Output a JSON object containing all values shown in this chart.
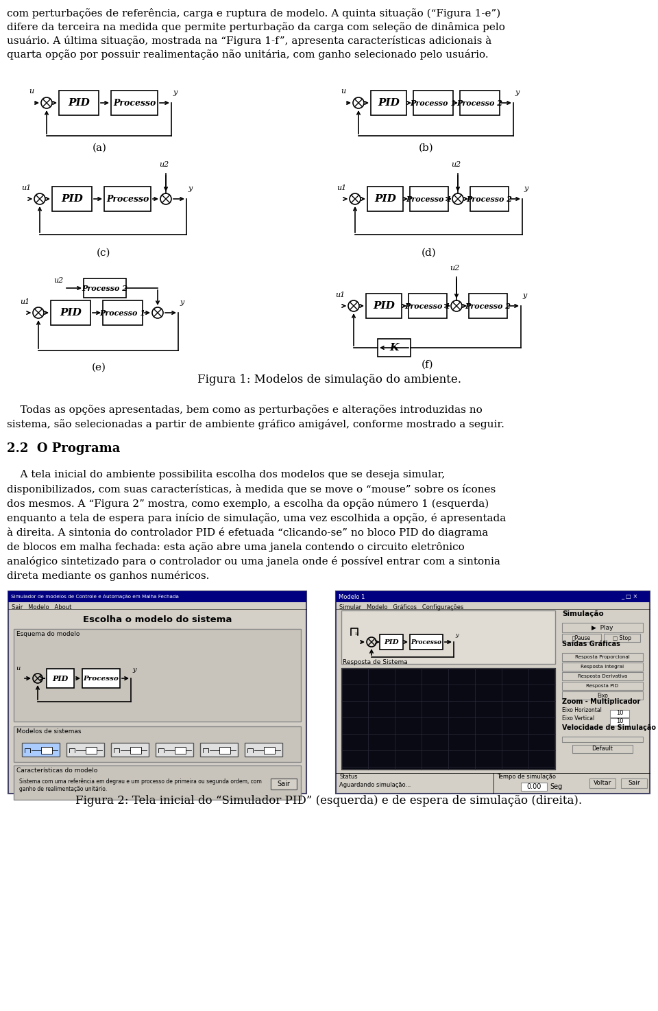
{
  "background_color": "#ffffff",
  "top_text": [
    "com perturbacoes de referencia, carga e ruptura de modelo. A quinta situacao (\"Figura 1-e\")",
    "difere da terceira na medida que permite perturbacao da carga com selecao de dinamica pelo",
    "usuario. A ultima situacao, mostrada na \"Figura 1-f\", apresenta caracteristicas adicionais a",
    "quarta opcao por possuir realimentacao nao unitaria, com ganho selecionado pelo usuario."
  ],
  "middle_text1": [
    "    Todas as opcoes apresentadas, bem como as perturbacoes e alteracoes introduzidas no",
    "sistema, sao selecionadas a partir de ambiente grafico amigavel, conforme mostrado a seguir."
  ],
  "section_header": "2.2  O Programa",
  "middle_text2": [
    "    A tela inicial do ambiente possibilita escolha dos modelos que se deseja simular,",
    "disponibilizados, com suas caracteristicas, a medida que se move o \"mouse\" sobre os icones",
    "dos mesmos. A \"Figura 2\" mostra, como exemplo, a escolha da opcao numero 1 (esquerda)",
    "enquanto a tela de espera para inicio de simulacao, uma vez escolhida a opcao, e apresentada",
    "a direita. A sintonia do controlador PID e efetuada \"clicando-se\" no bloco PID do diagrama",
    "de blocos em malha fechada: esta acao abre uma janela contendo o circuito eletronico",
    "analogico sintetizado para o controlador ou uma janela onde e possivel entrar com a sintonia",
    "direta mediante os ganhos numericos."
  ],
  "figure1_caption": "Figura 1: Modelos de simulacao do ambiente.",
  "figure2_caption": "Figura 2: Tela inicial do \"Simulador PID\" (esquerda) e de espera de simulacao (direita).",
  "label_a": "(a)",
  "label_b": "(b)",
  "label_c": "(c)",
  "label_d": "(d)",
  "label_e": "(e)",
  "label_f": "(f)",
  "top_text_real": [
    "com perturbações de referência, carga e ruptura de modelo. A quinta situação (“Figura 1-e”)",
    "difere da terceira na medida que permite perturbação da carga com seleção de dinâmica pelo",
    "usuário. A última situação, mostrada na “Figura 1-f”, apresenta características adicionais à",
    "quarta opção por possuir realimentação não unitária, com ganho selecionado pelo usuário."
  ],
  "middle_text1_real": [
    "    Todas as opções apresentadas, bem como as perturbações e alterações introduzidas no",
    "sistema, são selecionadas a partir de ambiente gráfico amigável, conforme mostrado a seguir."
  ],
  "section_header_real": "2.2  O Programa",
  "middle_text2_real": [
    "    A tela inicial do ambiente possibilita escolha dos modelos que se deseja simular,",
    "disponibilizados, com suas características, à medida que se move o “mouse” sobre os ícones",
    "dos mesmos. A “Figura 2” mostra, como exemplo, a escolha da opção número 1 (esquerda)",
    "enquanto a tela de espera para início de simulação, uma vez escolhida a opção, é apresentada",
    "à direita. A sintonia do controlador PID é efetuada “clicando-se” no bloco PID do diagrama",
    "de blocos em malha fechada: esta ação abre uma janela contendo o circuito eletrônico",
    "analógico sintetizado para o controlador ou uma janela onde é possível entrar com a sintonia",
    "direta mediante os ganhos numéricos."
  ],
  "figure1_caption_real": "Figura 1: Modelos de simulação do ambiente.",
  "figure2_caption_real": "Figura 2: Tela inicial do “Simulador PID” (esquerda) e de espera de simulação (direita)."
}
